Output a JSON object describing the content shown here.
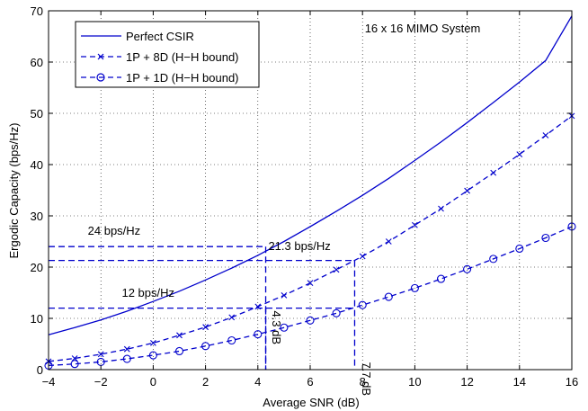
{
  "chart_data": {
    "type": "line",
    "title": "16 x 16 MIMO System",
    "xlabel": "Average SNR (dB)",
    "ylabel": "Ergodic Capacity (bps/Hz)",
    "xlim": [
      -4,
      16
    ],
    "ylim": [
      0,
      70
    ],
    "xticks": [
      -4,
      -2,
      0,
      2,
      4,
      6,
      8,
      10,
      12,
      14,
      16
    ],
    "yticks": [
      0,
      10,
      20,
      30,
      40,
      50,
      60,
      70
    ],
    "grid": true,
    "legend_position": "top-left",
    "color": "#0000cc",
    "series": [
      {
        "name": "Perfect CSIR",
        "style": "solid",
        "marker": "none",
        "x": [
          -4,
          -3,
          -2,
          -1,
          0,
          1,
          2,
          3,
          4,
          5,
          6,
          7,
          8,
          9,
          10,
          11,
          12,
          13,
          14,
          15,
          16
        ],
        "values": [
          6.8,
          8.2,
          9.7,
          11.4,
          13.3,
          15.3,
          17.5,
          19.8,
          22.3,
          25.0,
          27.9,
          30.9,
          34.0,
          37.3,
          40.8,
          44.4,
          48.2,
          52.1,
          56.1,
          60.3,
          69.0
        ]
      },
      {
        "name": "1P + 8D (H−H bound)",
        "style": "dashed",
        "marker": "x",
        "x": [
          -4,
          -3,
          -2,
          -1,
          0,
          1,
          2,
          3,
          4,
          5,
          6,
          7,
          8,
          9,
          10,
          11,
          12,
          13,
          14,
          15,
          16
        ],
        "values": [
          1.6,
          2.2,
          3.0,
          4.0,
          5.2,
          6.7,
          8.3,
          10.2,
          12.3,
          14.5,
          16.9,
          19.5,
          22.1,
          25.0,
          28.2,
          31.4,
          34.9,
          38.4,
          42.0,
          45.7,
          49.5
        ]
      },
      {
        "name": "1P + 1D (H−H bound)",
        "style": "dashed",
        "marker": "o",
        "x": [
          -4,
          -3,
          -2,
          -1,
          0,
          1,
          2,
          3,
          4,
          5,
          6,
          7,
          8,
          9,
          10,
          11,
          12,
          13,
          14,
          15,
          16
        ],
        "values": [
          0.8,
          1.1,
          1.5,
          2.1,
          2.8,
          3.6,
          4.6,
          5.7,
          6.9,
          8.2,
          9.6,
          11.0,
          12.6,
          14.2,
          15.9,
          17.7,
          19.6,
          21.6,
          23.6,
          25.7,
          27.9
        ]
      }
    ],
    "annotations": [
      {
        "text": "24 bps/Hz",
        "x": -2.5,
        "y": 26.3
      },
      {
        "text": "21.3 bps/Hz",
        "x": 4.4,
        "y": 23.3
      },
      {
        "text": "12 bps/Hz",
        "x": -1.2,
        "y": 14.2
      },
      {
        "text": "4.3 dB",
        "x": 4.55,
        "y": 11.5,
        "rotate": 90
      },
      {
        "text": "7.7 dB",
        "x": 8.0,
        "y": 1.5,
        "rotate": 90
      }
    ],
    "reference_lines": [
      {
        "x": [
          -4,
          4.3
        ],
        "y": [
          24,
          24
        ]
      },
      {
        "x": [
          4.3,
          4.3
        ],
        "y": [
          24,
          0
        ]
      },
      {
        "x": [
          -4,
          7.7
        ],
        "y": [
          21.3,
          21.3
        ]
      },
      {
        "x": [
          7.7,
          7.7
        ],
        "y": [
          21.3,
          0
        ]
      },
      {
        "x": [
          -4,
          7.7
        ],
        "y": [
          12,
          12
        ]
      },
      {
        "x": [
          4.3,
          4.3
        ],
        "y": [
          12,
          0
        ]
      }
    ]
  }
}
